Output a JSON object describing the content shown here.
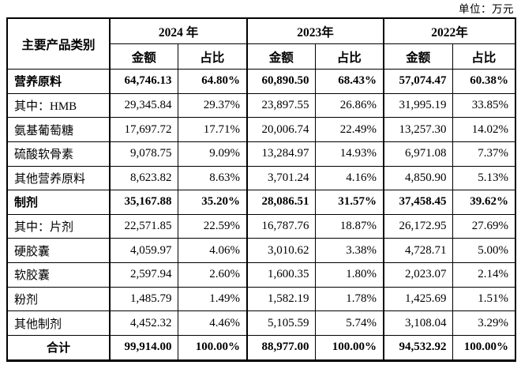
{
  "unit_label": "单位：万元",
  "table": {
    "corner_header": "主要产品类别",
    "year_headers": [
      "2024 年",
      "2023年",
      "2022年"
    ],
    "sub_headers": [
      "金额",
      "占比"
    ],
    "rows": [
      {
        "label": "营养原料",
        "bold": true,
        "total": false,
        "values": [
          "64,746.13",
          "64.80%",
          "60,890.50",
          "68.43%",
          "57,074.47",
          "60.38%"
        ]
      },
      {
        "label": "其中：HMB",
        "bold": false,
        "total": false,
        "values": [
          "29,345.84",
          "29.37%",
          "23,897.55",
          "26.86%",
          "31,995.19",
          "33.85%"
        ]
      },
      {
        "label": "氨基葡萄糖",
        "bold": false,
        "total": false,
        "values": [
          "17,697.72",
          "17.71%",
          "20,006.74",
          "22.49%",
          "13,257.30",
          "14.02%"
        ]
      },
      {
        "label": "硫酸软骨素",
        "bold": false,
        "total": false,
        "values": [
          "9,078.75",
          "9.09%",
          "13,284.97",
          "14.93%",
          "6,971.08",
          "7.37%"
        ]
      },
      {
        "label": "其他营养原料",
        "bold": false,
        "total": false,
        "values": [
          "8,623.82",
          "8.63%",
          "3,701.24",
          "4.16%",
          "4,850.90",
          "5.13%"
        ]
      },
      {
        "label": "制剂",
        "bold": true,
        "total": false,
        "values": [
          "35,167.88",
          "35.20%",
          "28,086.51",
          "31.57%",
          "37,458.45",
          "39.62%"
        ]
      },
      {
        "label": "其中：片剂",
        "bold": false,
        "total": false,
        "values": [
          "22,571.85",
          "22.59%",
          "16,787.76",
          "18.87%",
          "26,172.95",
          "27.69%"
        ]
      },
      {
        "label": "硬胶囊",
        "bold": false,
        "total": false,
        "values": [
          "4,059.97",
          "4.06%",
          "3,010.62",
          "3.38%",
          "4,728.71",
          "5.00%"
        ]
      },
      {
        "label": "软胶囊",
        "bold": false,
        "total": false,
        "values": [
          "2,597.94",
          "2.60%",
          "1,600.35",
          "1.80%",
          "2,023.07",
          "2.14%"
        ]
      },
      {
        "label": "粉剂",
        "bold": false,
        "total": false,
        "values": [
          "1,485.79",
          "1.49%",
          "1,582.19",
          "1.78%",
          "1,425.69",
          "1.51%"
        ]
      },
      {
        "label": "其他制剂",
        "bold": false,
        "total": false,
        "values": [
          "4,452.32",
          "4.46%",
          "5,105.59",
          "5.74%",
          "3,108.04",
          "3.29%"
        ]
      },
      {
        "label": "合计",
        "bold": true,
        "total": true,
        "values": [
          "99,914.00",
          "100.00%",
          "88,977.00",
          "100.00%",
          "94,532.92",
          "100.00%"
        ]
      }
    ]
  }
}
